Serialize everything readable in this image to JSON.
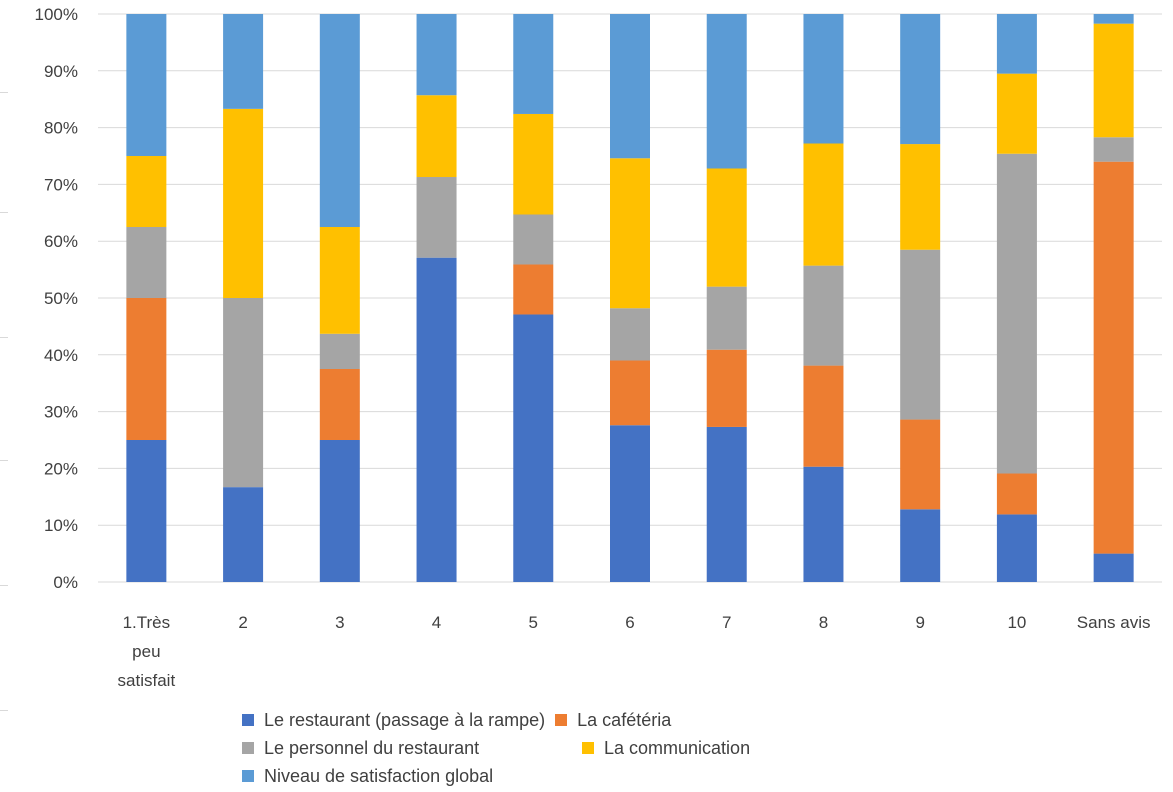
{
  "chart_data": {
    "type": "bar",
    "stacked": true,
    "normalized": true,
    "categories": [
      "1.Très peu satisfait",
      "2",
      "3",
      "4",
      "5",
      "6",
      "7",
      "8",
      "9",
      "10",
      "Sans avis"
    ],
    "series": [
      {
        "name": "Le restaurant (passage à la rampe)",
        "color": "#4472c4",
        "values": [
          25,
          16.7,
          25,
          57.1,
          47.1,
          27.6,
          27.3,
          20.3,
          12.8,
          11.9,
          5
        ]
      },
      {
        "name": "La cafétéria",
        "color": "#ed7d31",
        "values": [
          25,
          0,
          12.5,
          0,
          8.8,
          11.4,
          13.6,
          17.8,
          15.8,
          7.2,
          69
        ]
      },
      {
        "name": "Le personnel du restaurant",
        "color": "#a5a5a5",
        "values": [
          12.5,
          33.3,
          6.2,
          14.2,
          8.8,
          9.2,
          11.1,
          17.6,
          29.9,
          56.3,
          4.3
        ]
      },
      {
        "name": "La communication",
        "color": "#ffc000",
        "values": [
          12.5,
          33.3,
          18.8,
          14.4,
          17.7,
          26.4,
          20.8,
          21.5,
          18.6,
          14.1,
          20
        ]
      },
      {
        "name": "Niveau de satisfaction global",
        "color": "#5b9bd5",
        "values": [
          25,
          16.7,
          37.5,
          14.3,
          17.6,
          25.4,
          27.2,
          22.8,
          22.9,
          10.5,
          1.7
        ]
      }
    ],
    "ylim": [
      0,
      100
    ],
    "yticks": [
      "0%",
      "10%",
      "20%",
      "30%",
      "40%",
      "50%",
      "60%",
      "70%",
      "80%",
      "90%",
      "100%"
    ],
    "grid": true,
    "legend_position": "bottom"
  }
}
